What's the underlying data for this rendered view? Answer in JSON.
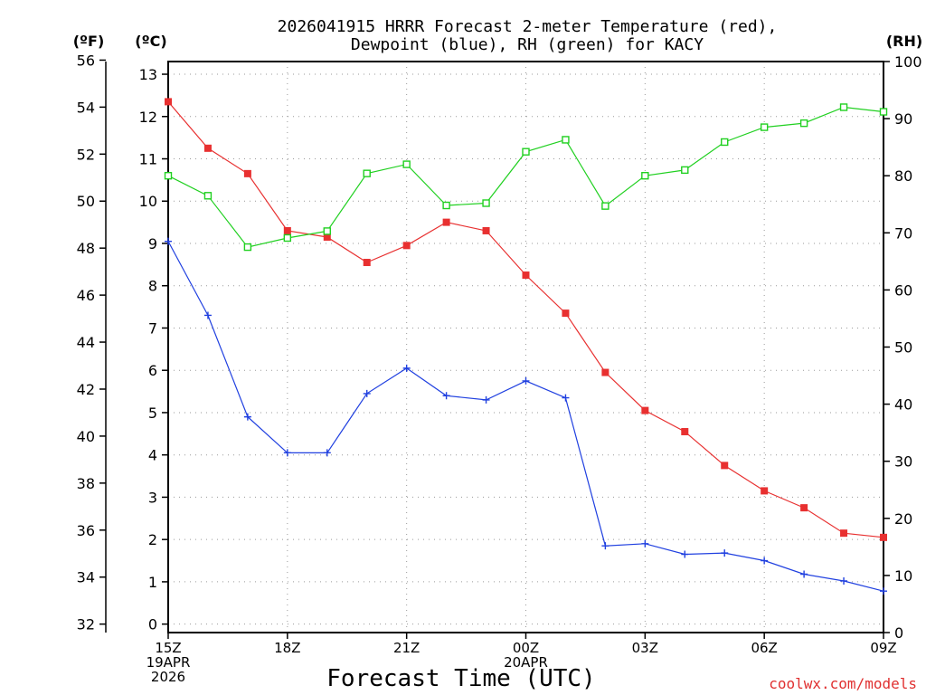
{
  "chart_data": {
    "type": "line",
    "title_line1": "2026041915 HRRR Forecast 2-meter Temperature (red),",
    "title_line2": "Dewpoint (blue), RH (green) for KACY",
    "xlabel": "Forecast Time (UTC)",
    "credit": "coolwx.com/models",
    "unit_left_f": "(ºF)",
    "unit_left_c": "(ºC)",
    "unit_right": "(RH)",
    "f_ticks": [
      "32",
      "34",
      "36",
      "38",
      "40",
      "42",
      "44",
      "46",
      "48",
      "50",
      "52",
      "54",
      "56"
    ],
    "c_ticks": [
      "0",
      "1",
      "2",
      "3",
      "4",
      "5",
      "6",
      "7",
      "8",
      "9",
      "10",
      "11",
      "12",
      "13"
    ],
    "rh_ticks": [
      "0",
      "10",
      "20",
      "30",
      "40",
      "50",
      "60",
      "70",
      "80",
      "90",
      "100"
    ],
    "ylim_c": [
      -0.2,
      13.3
    ],
    "ylim_rh": [
      0,
      100
    ],
    "x_ticks": [
      {
        "index": 0,
        "line1": "15Z",
        "line2": "19APR",
        "line3": "2026"
      },
      {
        "index": 3,
        "line1": "18Z",
        "line2": "",
        "line3": ""
      },
      {
        "index": 6,
        "line1": "21Z",
        "line2": "",
        "line3": ""
      },
      {
        "index": 9,
        "line1": "00Z",
        "line2": "20APR",
        "line3": ""
      },
      {
        "index": 12,
        "line1": "03Z",
        "line2": "",
        "line3": ""
      },
      {
        "index": 15,
        "line1": "06Z",
        "line2": "",
        "line3": ""
      },
      {
        "index": 18,
        "line1": "09Z",
        "line2": "",
        "line3": ""
      }
    ],
    "n_points": 19,
    "series": [
      {
        "name": "Temperature",
        "units": "C",
        "color": "#e83030",
        "marker": "square-filled",
        "values": [
          12.35,
          11.25,
          10.65,
          9.3,
          9.15,
          8.55,
          8.95,
          9.5,
          9.3,
          8.25,
          7.35,
          5.95,
          5.05,
          4.55,
          3.75,
          3.15,
          2.75,
          2.15,
          2.05
        ]
      },
      {
        "name": "Dewpoint",
        "units": "C",
        "color": "#2040e0",
        "marker": "plus",
        "values": [
          9.05,
          7.3,
          4.9,
          4.05,
          4.05,
          5.45,
          6.05,
          5.4,
          5.3,
          5.75,
          5.35,
          1.85,
          1.9,
          1.65,
          1.68,
          1.5,
          1.18,
          1.02,
          0.78
        ]
      },
      {
        "name": "RH",
        "units": "%",
        "color": "#20d020",
        "marker": "square-open",
        "values": [
          80,
          76.5,
          67.5,
          69.1,
          70.3,
          80.4,
          82,
          74.8,
          75.2,
          84.2,
          86.3,
          74.7,
          80,
          81,
          85.9,
          88.5,
          89.2,
          92,
          91.2
        ]
      }
    ]
  }
}
